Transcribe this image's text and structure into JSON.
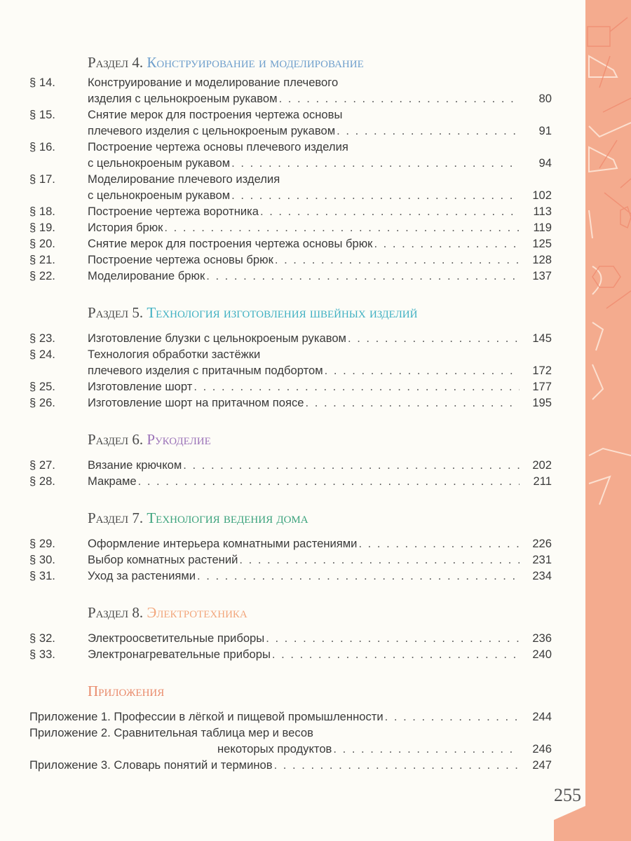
{
  "accent_band_color": "#f4ab8e",
  "sections": [
    {
      "label": "Раздел 4.",
      "title": "Конструирование и моделирование",
      "color": "#6f9fcc",
      "entries": [
        {
          "num": "§ 14.",
          "lines": [
            "Конструирование и моделирование плечевого",
            "изделия с цельнокроеным рукавом"
          ],
          "page": "80"
        },
        {
          "num": "§ 15.",
          "lines": [
            "Снятие мерок для построения чертежа основы",
            "плечевого изделия с цельнокроеным рукавом"
          ],
          "page": "91"
        },
        {
          "num": "§ 16.",
          "lines": [
            "Построение чертежа основы плечевого изделия",
            "с цельнокроеным рукавом"
          ],
          "page": "94"
        },
        {
          "num": "§ 17.",
          "lines": [
            "Моделирование плечевого изделия",
            "с цельнокроеным рукавом"
          ],
          "page": "102"
        },
        {
          "num": "§ 18.",
          "lines": [
            "Построение чертежа воротника"
          ],
          "page": "113"
        },
        {
          "num": "§ 19.",
          "lines": [
            "История брюк"
          ],
          "page": "119"
        },
        {
          "num": "§ 20.",
          "lines": [
            "Снятие мерок для построения чертежа основы брюк"
          ],
          "page": "125"
        },
        {
          "num": "§ 21.",
          "lines": [
            "Построение чертежа основы брюк"
          ],
          "page": "128"
        },
        {
          "num": "§ 22.",
          "lines": [
            "Моделирование брюк"
          ],
          "page": "137"
        }
      ]
    },
    {
      "label": "Раздел 5.",
      "title": "Технология изготовления швейных изделий",
      "color": "#3fb0c2",
      "entries": [
        {
          "num": "§ 23.",
          "lines": [
            "Изготовление блузки с цельнокроеным рукавом"
          ],
          "page": "145"
        },
        {
          "num": "§ 24.",
          "lines": [
            "Технология обработки застёжки",
            "плечевого изделия с притачным подбортом"
          ],
          "page": "172"
        },
        {
          "num": "§ 25.",
          "lines": [
            "Изготовление шорт"
          ],
          "page": "177"
        },
        {
          "num": "§ 26.",
          "lines": [
            "Изготовление шорт на притачном поясе"
          ],
          "page": "195"
        }
      ]
    },
    {
      "label": "Раздел 6.",
      "title": "Рукоделие",
      "color": "#9b72b8",
      "entries": [
        {
          "num": "§ 27.",
          "lines": [
            "Вязание крючком"
          ],
          "page": "202"
        },
        {
          "num": "§ 28.",
          "lines": [
            "Макраме"
          ],
          "page": "211"
        }
      ]
    },
    {
      "label": "Раздел 7.",
      "title": "Технология ведения дома",
      "color": "#3ba27c",
      "entries": [
        {
          "num": "§ 29.",
          "lines": [
            "Оформление интерьера комнатными растениями"
          ],
          "page": "226"
        },
        {
          "num": "§ 30.",
          "lines": [
            "Выбор комнатных растений"
          ],
          "page": "231"
        },
        {
          "num": "§ 31.",
          "lines": [
            "Уход за растениями"
          ],
          "page": "234"
        }
      ]
    },
    {
      "label": "Раздел 8.",
      "title": "Электротехника",
      "color": "#f2a67c",
      "entries": [
        {
          "num": "§ 32.",
          "lines": [
            "Электроосветительные приборы"
          ],
          "page": "236"
        },
        {
          "num": "§ 33.",
          "lines": [
            "Электронагревательные приборы"
          ],
          "page": "240"
        }
      ]
    },
    {
      "label": "",
      "title": "Приложения",
      "color": "#e98b6c",
      "appendix": true,
      "entries": [
        {
          "num": "",
          "lines": [
            "Приложение 1. Профессии в лёгкой и пищевой промышленности"
          ],
          "page": "244"
        },
        {
          "num": "",
          "lines": [
            "Приложение 2. Сравнительная таблица мер и весов",
            "некоторых продуктов"
          ],
          "page": "246"
        },
        {
          "num": "",
          "lines": [
            "Приложение 3. Словарь понятий и терминов"
          ],
          "page": "247"
        }
      ]
    }
  ],
  "page_number": "255"
}
